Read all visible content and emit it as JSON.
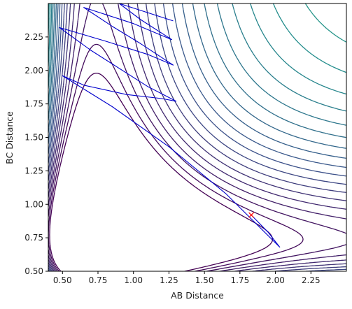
{
  "chart_data": {
    "type": "contour",
    "title": "",
    "xlabel": "AB Distance",
    "ylabel": "BC Distance",
    "xlim": [
      0.4,
      2.5
    ],
    "ylim": [
      0.5,
      2.5
    ],
    "xticks": [
      0.5,
      0.75,
      1.0,
      1.25,
      1.5,
      1.75,
      2.0,
      2.25
    ],
    "xtick_labels": [
      "0.50",
      "0.75",
      "1.00",
      "1.25",
      "1.50",
      "1.75",
      "2.00",
      "2.25"
    ],
    "yticks": [
      0.5,
      0.75,
      1.0,
      1.25,
      1.5,
      1.75,
      2.0,
      2.25
    ],
    "ytick_labels": [
      "0.50",
      "0.75",
      "1.00",
      "1.25",
      "1.50",
      "1.75",
      "2.00",
      "2.25"
    ],
    "colormap": [
      "#440154",
      "#3b528b",
      "#21918c",
      "#5ec962",
      "#fde725"
    ],
    "trajectory_color": "#0000cc",
    "trajectory": [
      [
        1.83,
        0.92
      ],
      [
        1.95,
        0.79
      ],
      [
        2.03,
        0.68
      ],
      [
        1.65,
        1.08
      ],
      [
        1.25,
        1.43
      ],
      [
        0.85,
        1.73
      ],
      [
        0.5,
        1.96
      ],
      [
        0.65,
        1.89
      ],
      [
        0.95,
        1.82
      ],
      [
        1.2,
        1.79
      ],
      [
        1.3,
        1.77
      ],
      [
        1.1,
        1.88
      ],
      [
        0.7,
        2.15
      ],
      [
        0.48,
        2.32
      ],
      [
        0.8,
        2.22
      ],
      [
        1.1,
        2.12
      ],
      [
        1.28,
        2.04
      ],
      [
        1.05,
        2.2
      ],
      [
        0.85,
        2.33
      ],
      [
        0.65,
        2.47
      ],
      [
        1.0,
        2.35
      ],
      [
        1.27,
        2.23
      ],
      [
        1.05,
        2.38
      ],
      [
        0.9,
        2.5
      ],
      [
        1.28,
        2.37
      ]
    ],
    "marker": {
      "x": 1.83,
      "y": 0.92,
      "symbol": "x",
      "color": "#ff0000"
    },
    "grid": false
  }
}
